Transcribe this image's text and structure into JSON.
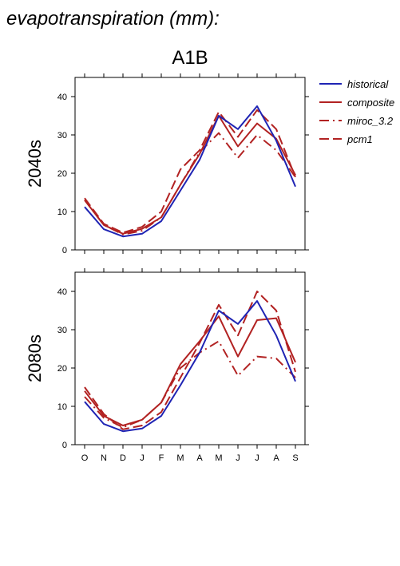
{
  "figure": {
    "title": "evapotranspiration (mm):",
    "scenario": "A1B"
  },
  "legend": {
    "placement": "right",
    "items": [
      {
        "name": "historical",
        "color": "#1f24b4",
        "dash": "solid"
      },
      {
        "name": "composite",
        "color": "#b22222",
        "dash": "solid"
      },
      {
        "name": "miroc_3.2",
        "color": "#b22222",
        "dash": "dashdot"
      },
      {
        "name": "pcm1",
        "color": "#b22222",
        "dash": "dashed"
      }
    ]
  },
  "chart_data": [
    {
      "type": "line",
      "title": "2040s",
      "ylabel": "2040s",
      "ylim": [
        0,
        45
      ],
      "yticks": [
        0,
        10,
        20,
        30,
        40
      ],
      "categories": [
        "O",
        "N",
        "D",
        "J",
        "F",
        "M",
        "A",
        "M",
        "J",
        "J",
        "A",
        "S"
      ],
      "show_xticklabels": false,
      "series": [
        {
          "name": "historical",
          "values": [
            11.2,
            5.4,
            3.5,
            4.2,
            7.5,
            15.5,
            23.5,
            35.0,
            31.5,
            37.5,
            28.5,
            16.5
          ]
        },
        {
          "name": "composite",
          "values": [
            13.0,
            6.5,
            4.2,
            5.5,
            8.5,
            17.0,
            25.0,
            35.0,
            27.0,
            33.0,
            29.0,
            19.5
          ]
        },
        {
          "name": "miroc_3.2",
          "values": [
            13.0,
            6.5,
            4.0,
            5.0,
            8.5,
            17.0,
            25.5,
            30.5,
            24.0,
            30.0,
            26.0,
            19.0
          ]
        },
        {
          "name": "pcm1",
          "values": [
            13.5,
            6.8,
            4.5,
            6.0,
            10.0,
            21.0,
            26.0,
            36.0,
            29.5,
            36.5,
            31.5,
            19.0
          ]
        }
      ]
    },
    {
      "type": "line",
      "title": "2080s",
      "ylabel": "2080s",
      "ylim": [
        0,
        45
      ],
      "yticks": [
        0,
        10,
        20,
        30,
        40
      ],
      "categories": [
        "O",
        "N",
        "D",
        "J",
        "F",
        "M",
        "A",
        "M",
        "J",
        "J",
        "A",
        "S"
      ],
      "show_xticklabels": true,
      "series": [
        {
          "name": "historical",
          "values": [
            11.2,
            5.4,
            3.5,
            4.2,
            7.5,
            15.5,
            24.0,
            35.0,
            31.5,
            37.5,
            28.5,
            16.5
          ]
        },
        {
          "name": "composite",
          "values": [
            14.0,
            7.5,
            5.0,
            6.5,
            11.0,
            21.0,
            27.0,
            33.5,
            23.0,
            32.5,
            33.0,
            21.5
          ]
        },
        {
          "name": "miroc_3.2",
          "values": [
            12.5,
            7.0,
            4.5,
            6.5,
            11.0,
            20.0,
            24.0,
            27.0,
            18.0,
            23.0,
            22.5,
            17.5
          ]
        },
        {
          "name": "pcm1",
          "values": [
            15.0,
            8.0,
            4.0,
            5.0,
            8.5,
            17.5,
            26.5,
            36.5,
            28.5,
            40.0,
            35.0,
            19.0
          ]
        }
      ]
    }
  ]
}
